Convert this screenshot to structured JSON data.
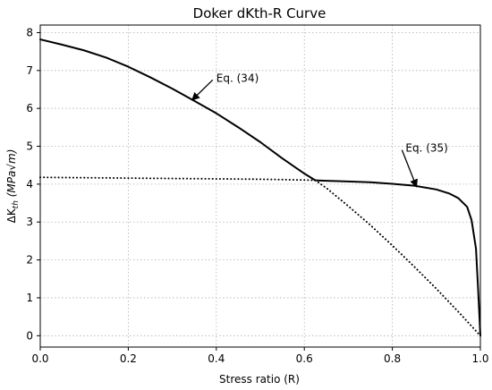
{
  "chart_data": {
    "type": "line",
    "title": "Doker dKth-R Curve",
    "xlabel": "Stress ratio (R)",
    "ylabel": "ΔK_th (MPa√m)",
    "xlim": [
      0.0,
      1.0
    ],
    "ylim": [
      -0.3,
      8.2
    ],
    "xticks": [
      "0.0",
      "0.2",
      "0.4",
      "0.6",
      "0.8",
      "1.0"
    ],
    "yticks": [
      "0",
      "1",
      "2",
      "3",
      "4",
      "5",
      "6",
      "7",
      "8"
    ],
    "grid": true,
    "series": [
      {
        "name": "Eq. (34) solid",
        "style": "solid",
        "color": "#000000",
        "x": [
          0.0,
          0.05,
          0.1,
          0.15,
          0.2,
          0.25,
          0.3,
          0.35,
          0.4,
          0.45,
          0.5,
          0.55,
          0.6,
          0.625
        ],
        "y": [
          7.82,
          7.68,
          7.53,
          7.34,
          7.1,
          6.82,
          6.52,
          6.2,
          5.87,
          5.5,
          5.11,
          4.68,
          4.28,
          4.1
        ]
      },
      {
        "name": "Eq. (35) solid",
        "style": "solid",
        "color": "#000000",
        "x": [
          0.625,
          0.65,
          0.7,
          0.75,
          0.8,
          0.85,
          0.9,
          0.93,
          0.95,
          0.97,
          0.98,
          0.99,
          0.995,
          1.0
        ],
        "y": [
          4.1,
          4.09,
          4.07,
          4.05,
          4.01,
          3.96,
          3.86,
          3.75,
          3.63,
          3.4,
          3.05,
          2.3,
          1.2,
          0.0
        ]
      },
      {
        "name": "Eq. (34) dotted",
        "style": "dotted",
        "color": "#000000",
        "x": [
          0.625,
          0.65,
          0.7,
          0.75,
          0.8,
          0.85,
          0.9,
          0.95,
          1.0
        ],
        "y": [
          4.1,
          3.9,
          3.42,
          2.92,
          2.38,
          1.82,
          1.24,
          0.63,
          0.0
        ]
      },
      {
        "name": "Eq. (35) dotted",
        "style": "dotted",
        "color": "#000000",
        "x": [
          0.0,
          0.1,
          0.2,
          0.3,
          0.4,
          0.5,
          0.6,
          0.625
        ],
        "y": [
          4.18,
          4.17,
          4.16,
          4.15,
          4.14,
          4.13,
          4.11,
          4.1
        ]
      }
    ],
    "annotations": [
      {
        "text": "Eq. (34)",
        "text_x": 0.4,
        "text_y": 6.8,
        "arrow_x": 0.345,
        "arrow_y": 6.22
      },
      {
        "text": "Eq. (35)",
        "text_x": 0.83,
        "text_y": 4.95,
        "arrow_x": 0.855,
        "arrow_y": 3.93
      }
    ]
  }
}
